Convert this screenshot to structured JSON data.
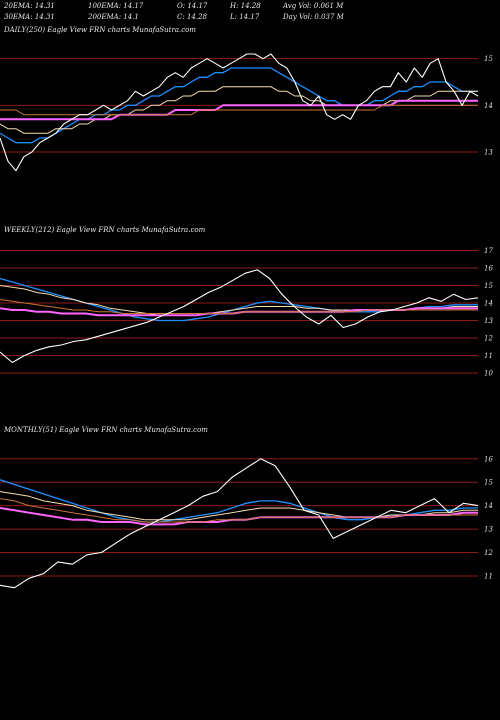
{
  "header": {
    "row1": [
      {
        "key": "ema20",
        "text": "20EMA: 14.31"
      },
      {
        "key": "ema100",
        "text": "100EMA: 14.17"
      },
      {
        "key": "open",
        "text": "O: 14.17"
      },
      {
        "key": "high",
        "text": "H: 14.28"
      },
      {
        "key": "avgvol",
        "text": "Avg Vol: 0.061 M"
      }
    ],
    "row2": [
      {
        "key": "ema30",
        "text": "30EMA: 14.31"
      },
      {
        "key": "ema200",
        "text": "200EMA: 14.1"
      },
      {
        "key": "close",
        "text": "C: 14.28"
      },
      {
        "key": "low",
        "text": "L: 14.17"
      },
      {
        "key": "dayvol",
        "text": "Day Vol: 0.037 M"
      }
    ]
  },
  "colors": {
    "background": "#000000",
    "price": "#ffffff",
    "ema_short": "#1e90ff",
    "ema_mid": "#f5deb3",
    "ema_long": "#ff66ff",
    "ema_vlong": "#c87533",
    "gridline": "#8b1a1a"
  },
  "chart_data": [
    {
      "type": "line",
      "title": "DAILY(250) Eagle   View  FRN  charts MunafaSutra.com",
      "yticks": [
        15,
        14,
        13
      ],
      "ylim": [
        12.4,
        15.4
      ],
      "series": [
        {
          "name": "",
          "role": "price",
          "values": [
            13.3,
            12.8,
            12.6,
            12.9,
            13.0,
            13.2,
            13.3,
            13.4,
            13.6,
            13.7,
            13.8,
            13.8,
            13.9,
            14.0,
            13.9,
            14.0,
            14.1,
            14.3,
            14.2,
            14.3,
            14.4,
            14.6,
            14.7,
            14.6,
            14.8,
            14.9,
            15.0,
            14.9,
            14.8,
            14.9,
            15.0,
            15.1,
            15.1,
            15.0,
            15.1,
            14.9,
            14.8,
            14.5,
            14.1,
            14.0,
            14.2,
            13.8,
            13.7,
            13.8,
            13.7,
            14.0,
            14.1,
            14.3,
            14.4,
            14.4,
            14.7,
            14.5,
            14.8,
            14.6,
            14.9,
            15.0,
            14.5,
            14.3,
            14.0,
            14.3,
            14.2
          ]
        },
        {
          "name": "",
          "role": "ema_short",
          "values": [
            13.4,
            13.3,
            13.2,
            13.2,
            13.2,
            13.3,
            13.3,
            13.4,
            13.5,
            13.6,
            13.7,
            13.7,
            13.8,
            13.8,
            13.9,
            13.9,
            14.0,
            14.0,
            14.1,
            14.2,
            14.2,
            14.3,
            14.4,
            14.4,
            14.5,
            14.6,
            14.6,
            14.7,
            14.7,
            14.8,
            14.8,
            14.8,
            14.8,
            14.8,
            14.8,
            14.7,
            14.6,
            14.5,
            14.4,
            14.3,
            14.2,
            14.1,
            14.1,
            14.0,
            14.0,
            14.0,
            14.0,
            14.1,
            14.1,
            14.2,
            14.3,
            14.3,
            14.4,
            14.4,
            14.5,
            14.5,
            14.5,
            14.4,
            14.3,
            14.3,
            14.3
          ]
        },
        {
          "name": "",
          "role": "ema_mid",
          "values": [
            13.6,
            13.5,
            13.5,
            13.4,
            13.4,
            13.4,
            13.4,
            13.5,
            13.5,
            13.5,
            13.6,
            13.6,
            13.7,
            13.7,
            13.8,
            13.8,
            13.8,
            13.9,
            13.9,
            14.0,
            14.0,
            14.1,
            14.1,
            14.2,
            14.2,
            14.3,
            14.3,
            14.3,
            14.4,
            14.4,
            14.4,
            14.4,
            14.4,
            14.4,
            14.4,
            14.3,
            14.3,
            14.2,
            14.2,
            14.1,
            14.1,
            14.0,
            14.0,
            14.0,
            14.0,
            14.0,
            14.0,
            14.0,
            14.0,
            14.1,
            14.1,
            14.1,
            14.2,
            14.2,
            14.2,
            14.3,
            14.3,
            14.3,
            14.3,
            14.3,
            14.3
          ]
        },
        {
          "name": "",
          "role": "ema_long",
          "values": [
            13.7,
            13.7,
            13.7,
            13.7,
            13.7,
            13.7,
            13.7,
            13.7,
            13.7,
            13.7,
            13.7,
            13.7,
            13.7,
            13.7,
            13.7,
            13.8,
            13.8,
            13.8,
            13.8,
            13.8,
            13.8,
            13.8,
            13.9,
            13.9,
            13.9,
            13.9,
            13.9,
            13.9,
            14.0,
            14.0,
            14.0,
            14.0,
            14.0,
            14.0,
            14.0,
            14.0,
            14.0,
            14.0,
            14.0,
            14.0,
            14.0,
            14.0,
            14.0,
            14.0,
            14.0,
            14.0,
            14.0,
            14.0,
            14.0,
            14.0,
            14.1,
            14.1,
            14.1,
            14.1,
            14.1,
            14.1,
            14.1,
            14.1,
            14.1,
            14.1,
            14.1
          ]
        },
        {
          "name": "",
          "role": "ema_vlong",
          "values": [
            13.9,
            13.9,
            13.9,
            13.8,
            13.8,
            13.8,
            13.8,
            13.8,
            13.8,
            13.8,
            13.8,
            13.8,
            13.8,
            13.8,
            13.8,
            13.8,
            13.8,
            13.8,
            13.8,
            13.8,
            13.8,
            13.8,
            13.8,
            13.8,
            13.8,
            13.9,
            13.9,
            13.9,
            13.9,
            13.9,
            13.9,
            13.9,
            13.9,
            13.9,
            13.9,
            13.9,
            13.9,
            13.9,
            13.9,
            13.9,
            13.9,
            13.9,
            13.9,
            13.9,
            13.9,
            13.9,
            13.9,
            13.9,
            14.0,
            14.0,
            14.0,
            14.0,
            14.0,
            14.0,
            14.0,
            14.0,
            14.0,
            14.0,
            14.0,
            14.0,
            14.0
          ]
        }
      ]
    },
    {
      "type": "line",
      "title": "WEEKLY(212) Eagle   View  FRN  charts MunafaSutra.com",
      "yticks": [
        17,
        16,
        15,
        14,
        13,
        12,
        11,
        10
      ],
      "ylim": [
        9.6,
        17.6
      ],
      "series": [
        {
          "name": "",
          "role": "price",
          "values": [
            11.2,
            10.6,
            11.0,
            11.3,
            11.5,
            11.6,
            11.8,
            11.9,
            12.1,
            12.3,
            12.5,
            12.7,
            12.9,
            13.2,
            13.5,
            13.8,
            14.2,
            14.6,
            14.9,
            15.3,
            15.7,
            15.9,
            15.4,
            14.5,
            13.8,
            13.2,
            12.8,
            13.3,
            12.6,
            12.8,
            13.2,
            13.5,
            13.6,
            13.8,
            14.0,
            14.3,
            14.1,
            14.5,
            14.2,
            14.3
          ]
        },
        {
          "name": "",
          "role": "ema_short",
          "values": [
            15.4,
            15.2,
            15.0,
            14.8,
            14.6,
            14.4,
            14.2,
            14.0,
            13.8,
            13.6,
            13.4,
            13.2,
            13.1,
            13.0,
            13.0,
            13.0,
            13.1,
            13.2,
            13.4,
            13.6,
            13.8,
            14.0,
            14.1,
            14.0,
            13.9,
            13.8,
            13.7,
            13.6,
            13.5,
            13.5,
            13.5,
            13.5,
            13.6,
            13.6,
            13.7,
            13.8,
            13.8,
            13.9,
            13.9,
            13.9
          ]
        },
        {
          "name": "",
          "role": "ema_mid",
          "values": [
            15.0,
            14.9,
            14.8,
            14.6,
            14.5,
            14.3,
            14.2,
            14.0,
            13.9,
            13.7,
            13.6,
            13.5,
            13.4,
            13.3,
            13.3,
            13.3,
            13.3,
            13.4,
            13.5,
            13.6,
            13.7,
            13.8,
            13.8,
            13.8,
            13.8,
            13.7,
            13.7,
            13.6,
            13.6,
            13.6,
            13.6,
            13.6,
            13.6,
            13.6,
            13.7,
            13.7,
            13.7,
            13.8,
            13.8,
            13.8
          ]
        },
        {
          "name": "",
          "role": "ema_long",
          "values": [
            13.7,
            13.6,
            13.6,
            13.5,
            13.5,
            13.4,
            13.4,
            13.4,
            13.3,
            13.3,
            13.3,
            13.3,
            13.3,
            13.3,
            13.3,
            13.3,
            13.3,
            13.4,
            13.4,
            13.4,
            13.5,
            13.5,
            13.5,
            13.5,
            13.5,
            13.5,
            13.5,
            13.5,
            13.5,
            13.6,
            13.6,
            13.6,
            13.6,
            13.6,
            13.7,
            13.7,
            13.7,
            13.7,
            13.7,
            13.7
          ]
        },
        {
          "name": "",
          "role": "ema_vlong",
          "values": [
            14.2,
            14.1,
            14.0,
            13.9,
            13.8,
            13.7,
            13.6,
            13.6,
            13.5,
            13.5,
            13.4,
            13.4,
            13.4,
            13.4,
            13.4,
            13.4,
            13.4,
            13.4,
            13.4,
            13.4,
            13.5,
            13.5,
            13.5,
            13.5,
            13.5,
            13.5,
            13.5,
            13.5,
            13.5,
            13.5,
            13.6,
            13.6,
            13.6,
            13.6,
            13.6,
            13.6,
            13.6,
            13.6,
            13.6,
            13.6
          ]
        }
      ]
    },
    {
      "type": "line",
      "title": "MONTHLY(51) Eagle   View  FRN  charts MunafaSutra.com",
      "yticks": [
        16,
        15,
        14,
        13,
        12,
        11
      ],
      "ylim": [
        10.4,
        16.8
      ],
      "series": [
        {
          "name": "",
          "role": "price",
          "values": [
            10.6,
            10.5,
            10.9,
            11.1,
            11.6,
            11.5,
            11.9,
            12.0,
            12.4,
            12.8,
            13.1,
            13.4,
            13.7,
            14.0,
            14.4,
            14.6,
            15.2,
            15.6,
            16.0,
            15.7,
            14.8,
            13.8,
            13.6,
            12.6,
            12.9,
            13.2,
            13.5,
            13.8,
            13.7,
            14.0,
            14.3,
            13.7,
            14.1,
            14.0
          ]
        },
        {
          "name": "",
          "role": "ema_short",
          "values": [
            15.1,
            14.9,
            14.7,
            14.5,
            14.3,
            14.1,
            13.9,
            13.7,
            13.5,
            13.4,
            13.3,
            13.3,
            13.4,
            13.5,
            13.6,
            13.7,
            13.9,
            14.1,
            14.2,
            14.2,
            14.1,
            13.9,
            13.7,
            13.5,
            13.4,
            13.4,
            13.5,
            13.6,
            13.6,
            13.7,
            13.8,
            13.8,
            13.9,
            13.9
          ]
        },
        {
          "name": "",
          "role": "ema_mid",
          "values": [
            14.6,
            14.5,
            14.4,
            14.2,
            14.1,
            14.0,
            13.8,
            13.7,
            13.6,
            13.5,
            13.4,
            13.4,
            13.4,
            13.4,
            13.5,
            13.6,
            13.7,
            13.8,
            13.9,
            13.9,
            13.9,
            13.8,
            13.7,
            13.6,
            13.5,
            13.5,
            13.5,
            13.6,
            13.6,
            13.6,
            13.7,
            13.7,
            13.8,
            13.8
          ]
        },
        {
          "name": "",
          "role": "ema_long",
          "values": [
            13.9,
            13.8,
            13.7,
            13.6,
            13.5,
            13.4,
            13.4,
            13.3,
            13.3,
            13.3,
            13.2,
            13.2,
            13.2,
            13.3,
            13.3,
            13.3,
            13.4,
            13.4,
            13.5,
            13.5,
            13.5,
            13.5,
            13.5,
            13.5,
            13.5,
            13.5,
            13.5,
            13.5,
            13.6,
            13.6,
            13.6,
            13.6,
            13.7,
            13.7
          ]
        },
        {
          "name": "",
          "role": "ema_vlong",
          "values": [
            14.3,
            14.2,
            14.0,
            13.9,
            13.8,
            13.7,
            13.6,
            13.5,
            13.4,
            13.4,
            13.3,
            13.3,
            13.3,
            13.3,
            13.3,
            13.4,
            13.4,
            13.4,
            13.5,
            13.5,
            13.5,
            13.5,
            13.5,
            13.5,
            13.5,
            13.5,
            13.5,
            13.5,
            13.6,
            13.6,
            13.6,
            13.6,
            13.6,
            13.6
          ]
        }
      ]
    }
  ]
}
